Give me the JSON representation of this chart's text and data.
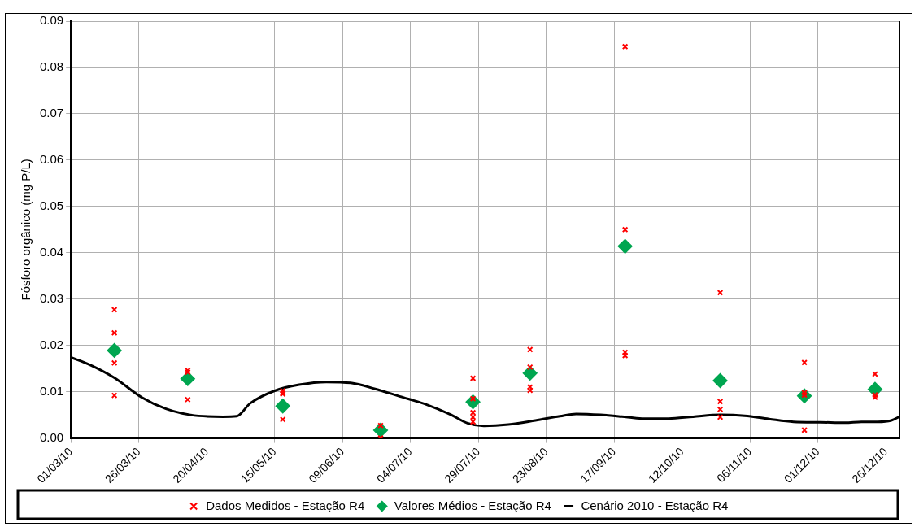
{
  "chart_data": {
    "type": "scatter",
    "ylabel": "Fósforo orgânico (mg P/L)",
    "xlim": [
      "2010-03-01",
      "2010-12-31"
    ],
    "xticks": [
      {
        "value": "2010-03-01",
        "label": "01/03/10"
      },
      {
        "value": "2010-03-26",
        "label": "26/03/10"
      },
      {
        "value": "2010-04-20",
        "label": "20/04/10"
      },
      {
        "value": "2010-05-15",
        "label": "15/05/10"
      },
      {
        "value": "2010-06-09",
        "label": "09/06/10"
      },
      {
        "value": "2010-07-04",
        "label": "04/07/10"
      },
      {
        "value": "2010-07-29",
        "label": "29/07/10"
      },
      {
        "value": "2010-08-23",
        "label": "23/08/10"
      },
      {
        "value": "2010-09-17",
        "label": "17/09/10"
      },
      {
        "value": "2010-10-12",
        "label": "12/10/10"
      },
      {
        "value": "2010-11-06",
        "label": "06/11/10"
      },
      {
        "value": "2010-12-01",
        "label": "01/12/10"
      },
      {
        "value": "2010-12-26",
        "label": "26/12/10"
      }
    ],
    "ylim": [
      0,
      0.09
    ],
    "yticks": [
      {
        "value": 0,
        "label": "0.00"
      },
      {
        "value": 0.01,
        "label": "0.01"
      },
      {
        "value": 0.02,
        "label": "0.02"
      },
      {
        "value": 0.03,
        "label": "0.03"
      },
      {
        "value": 0.04,
        "label": "0.04"
      },
      {
        "value": 0.05,
        "label": "0.05"
      },
      {
        "value": 0.06,
        "label": "0.06"
      },
      {
        "value": 0.07,
        "label": "0.07"
      },
      {
        "value": 0.08,
        "label": "0.08"
      },
      {
        "value": 0.09,
        "label": "0.09"
      }
    ],
    "grid": true,
    "legend": "bottom",
    "series": [
      {
        "name": "Dados Medidos - Estação R4",
        "marker": "cross",
        "color": "#ff0000",
        "x": [
          "2010-03-17",
          "2010-03-17",
          "2010-03-17",
          "2010-03-17",
          "2010-04-13",
          "2010-04-13",
          "2010-04-13",
          "2010-05-18",
          "2010-05-18",
          "2010-05-18",
          "2010-05-18",
          "2010-06-23",
          "2010-06-23",
          "2010-07-27",
          "2010-07-27",
          "2010-07-27",
          "2010-07-27",
          "2010-07-27",
          "2010-08-17",
          "2010-08-17",
          "2010-08-17",
          "2010-08-17",
          "2010-09-21",
          "2010-09-21",
          "2010-09-21",
          "2010-09-21",
          "2010-10-26",
          "2010-10-26",
          "2010-10-26",
          "2010-10-26",
          "2010-11-26",
          "2010-11-26",
          "2010-11-26",
          "2010-11-26",
          "2010-12-22",
          "2010-12-22",
          "2010-12-22"
        ],
        "values": [
          0.0277,
          0.0227,
          0.0162,
          0.0092,
          0.0146,
          0.0142,
          0.0083,
          0.0102,
          0.0097,
          0.0095,
          0.004,
          0.0027,
          0.0,
          0.0129,
          0.0085,
          0.0055,
          0.0045,
          0.0035,
          0.0191,
          0.0153,
          0.011,
          0.0103,
          0.0845,
          0.045,
          0.0185,
          0.0178,
          0.0314,
          0.0079,
          0.0062,
          0.0045,
          0.0163,
          0.0098,
          0.0093,
          0.0017,
          0.0138,
          0.0093,
          0.0088
        ]
      },
      {
        "name": "Valores Médios - Estação R4",
        "marker": "diamond",
        "color": "#00a650",
        "x": [
          "2010-03-17",
          "2010-04-13",
          "2010-05-18",
          "2010-06-23",
          "2010-07-27",
          "2010-08-17",
          "2010-09-21",
          "2010-10-26",
          "2010-11-26",
          "2010-12-22"
        ],
        "values": [
          0.0189,
          0.0128,
          0.0069,
          0.0017,
          0.0078,
          0.014,
          0.0414,
          0.0124,
          0.0091,
          0.0105
        ]
      },
      {
        "name": "Cenário 2010 - Estação R4",
        "type": "line",
        "marker": "none",
        "line_style": "solid",
        "color": "#000000",
        "x": [
          "2010-03-01",
          "2010-03-08",
          "2010-03-17",
          "2010-03-27",
          "2010-04-05",
          "2010-04-14",
          "2010-04-26",
          "2010-05-01",
          "2010-05-06",
          "2010-05-15",
          "2010-05-24",
          "2010-06-03",
          "2010-06-12",
          "2010-06-21",
          "2010-06-30",
          "2010-07-10",
          "2010-07-19",
          "2010-07-25",
          "2010-07-31",
          "2010-08-09",
          "2010-08-19",
          "2010-08-28",
          "2010-09-03",
          "2010-09-12",
          "2010-09-22",
          "2010-09-28",
          "2010-10-07",
          "2010-10-16",
          "2010-10-26",
          "2010-11-04",
          "2010-11-13",
          "2010-11-22",
          "2010-12-02",
          "2010-12-11",
          "2010-12-17",
          "2010-12-23",
          "2010-12-28",
          "2010-12-31"
        ],
        "values": [
          0.0174,
          0.0158,
          0.013,
          0.0088,
          0.0063,
          0.005,
          0.0046,
          0.0047,
          0.0075,
          0.0102,
          0.0115,
          0.0121,
          0.0119,
          0.0106,
          0.009,
          0.0072,
          0.005,
          0.0032,
          0.0026,
          0.0029,
          0.0038,
          0.0047,
          0.0052,
          0.005,
          0.0045,
          0.0042,
          0.0042,
          0.0046,
          0.005,
          0.0048,
          0.0041,
          0.0035,
          0.0034,
          0.0033,
          0.0035,
          0.0035,
          0.0038,
          0.0046
        ]
      }
    ]
  }
}
